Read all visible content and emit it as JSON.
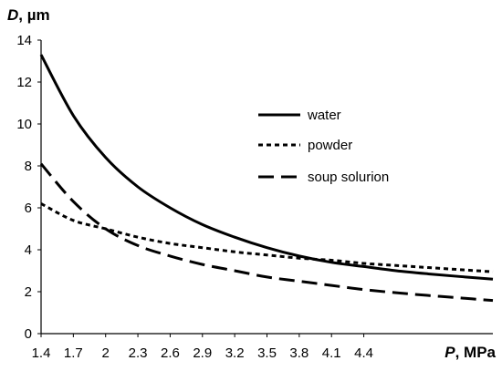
{
  "chart_data": {
    "type": "line",
    "title": "",
    "ylabel": {
      "var": "D",
      "unit": ", µm"
    },
    "xlabel": {
      "var": "P",
      "unit": ", MPa"
    },
    "xlim": [
      1.4,
      5.6
    ],
    "ylim": [
      0,
      14
    ],
    "x_ticks": [
      "1.4",
      "1.7",
      "2",
      "2.3",
      "2.6",
      "2.9",
      "3.2",
      "3.5",
      "3.8",
      "4.1",
      "4.4"
    ],
    "y_ticks": [
      "0",
      "2",
      "4",
      "6",
      "8",
      "10",
      "12",
      "14"
    ],
    "grid": false,
    "legend_position": "center-right",
    "x": [
      1.4,
      1.7,
      2.0,
      2.3,
      2.6,
      2.9,
      3.2,
      3.5,
      3.8,
      4.1,
      4.4,
      4.7,
      5.0,
      5.3,
      5.6
    ],
    "series": [
      {
        "name": "water",
        "style": "solid",
        "color": "#000000",
        "values": [
          13.3,
          10.4,
          8.4,
          7.0,
          6.0,
          5.2,
          4.6,
          4.1,
          3.7,
          3.4,
          3.2,
          3.0,
          2.85,
          2.72,
          2.6
        ]
      },
      {
        "name": "powder",
        "style": "short-dash",
        "color": "#000000",
        "values": [
          6.2,
          5.4,
          5.0,
          4.6,
          4.3,
          4.1,
          3.9,
          3.75,
          3.6,
          3.5,
          3.35,
          3.25,
          3.15,
          3.05,
          2.95
        ]
      },
      {
        "name": "soup solurion",
        "style": "long-dash",
        "color": "#000000",
        "values": [
          8.1,
          6.3,
          5.0,
          4.2,
          3.7,
          3.3,
          3.0,
          2.7,
          2.5,
          2.3,
          2.1,
          1.95,
          1.82,
          1.7,
          1.58
        ]
      }
    ]
  }
}
